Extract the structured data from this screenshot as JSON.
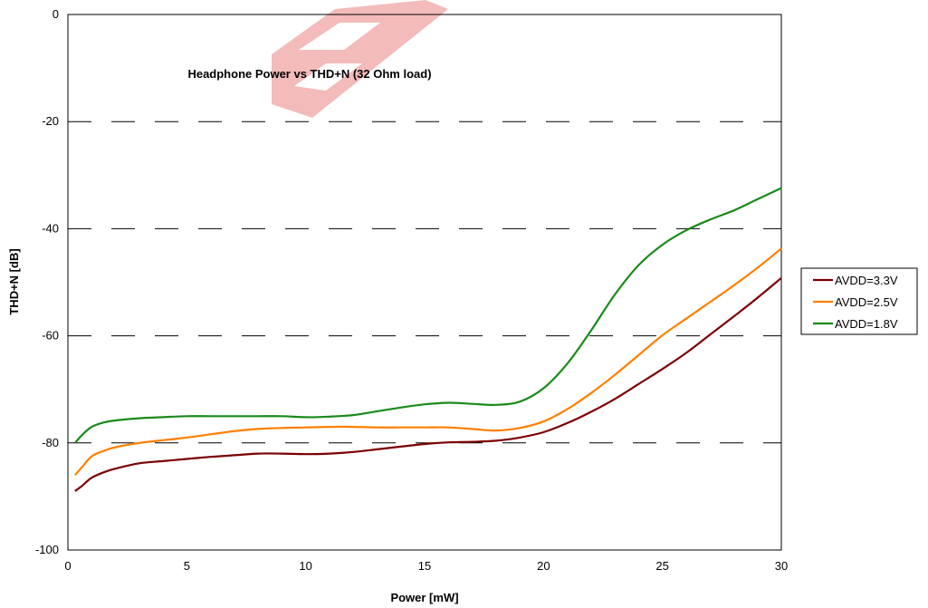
{
  "chart_data": {
    "type": "line",
    "title": "Headphone Power vs THD+N (32 Ohm load)",
    "xlabel": "Power [mW]",
    "ylabel": "THD+N [dB]",
    "xlim": [
      0,
      30
    ],
    "ylim": [
      -100,
      0
    ],
    "xticks": [
      0,
      5,
      10,
      15,
      20,
      25,
      30
    ],
    "yticks": [
      0,
      -20,
      -40,
      -60,
      -80,
      -100
    ],
    "grid": "horizontal dashed",
    "legend_position": "right",
    "series": [
      {
        "name": "AVDD=3.3V",
        "color": "#7b0000",
        "points": [
          [
            0.3,
            -89
          ],
          [
            0.6,
            -88
          ],
          [
            1,
            -86.5
          ],
          [
            1.5,
            -85.5
          ],
          [
            2,
            -84.8
          ],
          [
            3,
            -83.8
          ],
          [
            4,
            -83.4
          ],
          [
            5,
            -83
          ],
          [
            6,
            -82.6
          ],
          [
            7,
            -82.3
          ],
          [
            8,
            -82
          ],
          [
            9,
            -82
          ],
          [
            10,
            -82.1
          ],
          [
            11,
            -82
          ],
          [
            12,
            -81.7
          ],
          [
            13,
            -81.2
          ],
          [
            14,
            -80.7
          ],
          [
            15,
            -80.2
          ],
          [
            16,
            -79.9
          ],
          [
            17,
            -79.8
          ],
          [
            18,
            -79.6
          ],
          [
            19,
            -79
          ],
          [
            20,
            -78
          ],
          [
            21,
            -76.3
          ],
          [
            22,
            -74.2
          ],
          [
            23,
            -71.8
          ],
          [
            24,
            -69
          ],
          [
            25,
            -66.2
          ],
          [
            26,
            -63.2
          ],
          [
            27,
            -59.8
          ],
          [
            28,
            -56.4
          ],
          [
            29,
            -52.9
          ],
          [
            30,
            -49.2
          ]
        ]
      },
      {
        "name": "AVDD=2.5V",
        "color": "#ff7f00",
        "points": [
          [
            0.3,
            -86
          ],
          [
            0.6,
            -84.5
          ],
          [
            1,
            -82.5
          ],
          [
            1.5,
            -81.5
          ],
          [
            2,
            -80.8
          ],
          [
            3,
            -80
          ],
          [
            4,
            -79.5
          ],
          [
            5,
            -79
          ],
          [
            6,
            -78.4
          ],
          [
            7,
            -77.8
          ],
          [
            8,
            -77.4
          ],
          [
            9,
            -77.2
          ],
          [
            10,
            -77.1
          ],
          [
            11,
            -77
          ],
          [
            12,
            -77
          ],
          [
            13,
            -77.1
          ],
          [
            14,
            -77.1
          ],
          [
            15,
            -77.1
          ],
          [
            16,
            -77.1
          ],
          [
            17,
            -77.4
          ],
          [
            18,
            -77.7
          ],
          [
            19,
            -77.2
          ],
          [
            20,
            -76
          ],
          [
            21,
            -73.7
          ],
          [
            22,
            -70.7
          ],
          [
            23,
            -67.3
          ],
          [
            24,
            -63.6
          ],
          [
            25,
            -59.9
          ],
          [
            26,
            -56.8
          ],
          [
            27,
            -53.7
          ],
          [
            28,
            -50.6
          ],
          [
            29,
            -47.3
          ],
          [
            30,
            -43.7
          ]
        ]
      },
      {
        "name": "AVDD=1.8V",
        "color": "#1a8a1a",
        "points": [
          [
            0.3,
            -80
          ],
          [
            0.6,
            -78.5
          ],
          [
            1,
            -77
          ],
          [
            1.5,
            -76.2
          ],
          [
            2,
            -75.8
          ],
          [
            3,
            -75.4
          ],
          [
            4,
            -75.2
          ],
          [
            5,
            -75
          ],
          [
            6,
            -75
          ],
          [
            7,
            -75
          ],
          [
            8,
            -75
          ],
          [
            9,
            -75
          ],
          [
            10,
            -75.2
          ],
          [
            11,
            -75.1
          ],
          [
            12,
            -74.8
          ],
          [
            13,
            -74.1
          ],
          [
            14,
            -73.4
          ],
          [
            15,
            -72.8
          ],
          [
            16,
            -72.5
          ],
          [
            17,
            -72.7
          ],
          [
            18,
            -72.9
          ],
          [
            19,
            -72.3
          ],
          [
            20,
            -69.8
          ],
          [
            21,
            -65.2
          ],
          [
            22,
            -59
          ],
          [
            23,
            -52.3
          ],
          [
            24,
            -46.8
          ],
          [
            25,
            -43
          ],
          [
            26,
            -40.3
          ],
          [
            27,
            -38.3
          ],
          [
            28,
            -36.6
          ],
          [
            29,
            -34.5
          ],
          [
            30,
            -32.4
          ]
        ]
      }
    ]
  }
}
